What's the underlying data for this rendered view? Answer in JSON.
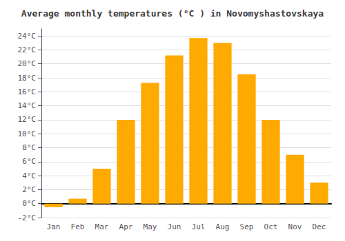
{
  "chart_data": {
    "type": "bar",
    "title": "Average monthly temperatures (°C ) in Novomyshastovskaya",
    "categories": [
      "Jan",
      "Feb",
      "Mar",
      "Apr",
      "May",
      "Jun",
      "Jul",
      "Aug",
      "Sep",
      "Oct",
      "Nov",
      "Dec"
    ],
    "values": [
      -0.5,
      0.7,
      5.0,
      12.0,
      17.3,
      21.2,
      23.7,
      23.0,
      18.5,
      12.0,
      7.0,
      3.0
    ],
    "color": "#FFAA00",
    "ylim": [
      -2,
      25
    ],
    "yticks": [
      {
        "value": -2,
        "label": "-2°C"
      },
      {
        "value": 0,
        "label": "0°C"
      },
      {
        "value": 2,
        "label": "2°C"
      },
      {
        "value": 4,
        "label": "4°C"
      },
      {
        "value": 6,
        "label": "6°C"
      },
      {
        "value": 8,
        "label": "8°C"
      },
      {
        "value": 10,
        "label": "10°C"
      },
      {
        "value": 12,
        "label": "12°C"
      },
      {
        "value": 14,
        "label": "14°C"
      },
      {
        "value": 16,
        "label": "16°C"
      },
      {
        "value": 18,
        "label": "18°C"
      },
      {
        "value": 20,
        "label": "20°C"
      },
      {
        "value": 22,
        "label": "22°C"
      },
      {
        "value": 24,
        "label": "24°C"
      }
    ],
    "grid": true
  }
}
